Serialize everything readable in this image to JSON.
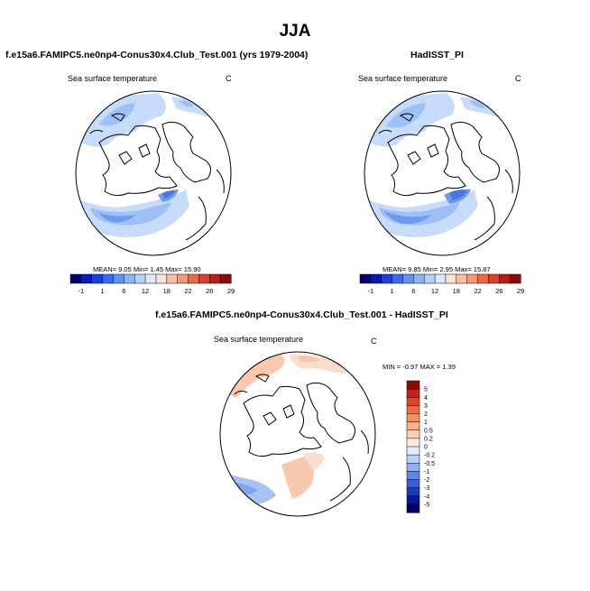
{
  "title": "JJA",
  "panels": {
    "model": {
      "case_title": "f.e15a6.FAMIPC5.ne0np4-Conus30x4.Club_Test.001 (yrs 1979-2004)",
      "variable": "Sea surface temperature",
      "units": "C",
      "stats": {
        "mean_label": "MEAN=",
        "mean": "9.05",
        "min_label": "Min=",
        "min": "1.45",
        "max_label": "Max=",
        "max": "15.90"
      }
    },
    "obs": {
      "case_title": "HadISST_PI",
      "variable": "Sea surface temperature",
      "units": "C",
      "stats": {
        "mean_label": "MEAN=",
        "mean": "9.85",
        "min_label": "Min=",
        "min": "2.95",
        "max_label": "Max=",
        "max": "15.87"
      }
    },
    "diff": {
      "case_title": "f.e15a6.FAMIPC5.ne0np4-Conus30x4.Club_Test.001 - HadISST_PI",
      "variable": "Sea surface temperature",
      "units": "C",
      "minmax_text": "MIN = -0.97 MAX = 1.39"
    }
  },
  "colorbars": {
    "sst": {
      "labels": [
        "-1",
        "1",
        "6",
        "12",
        "18",
        "22",
        "26",
        "29"
      ],
      "colors": [
        "#05006b",
        "#0b18b8",
        "#1f3ee0",
        "#3a6af0",
        "#5f94f5",
        "#8ab6f8",
        "#b5d2fb",
        "#dce9fd",
        "#fbe2d6",
        "#f8c0a4",
        "#f39a76",
        "#ea6b46",
        "#d7402a",
        "#b51f15",
        "#8c0a0a"
      ]
    },
    "diff": {
      "labels": [
        "5",
        "4",
        "3",
        "2",
        "1",
        "0.5",
        "0.2",
        "0",
        "-0.2",
        "-0.5",
        "-1",
        "-2",
        "-3",
        "-4",
        "-5"
      ],
      "colors": [
        "#8c0a0a",
        "#c42216",
        "#e0452c",
        "#ef6a44",
        "#f7925f",
        "#fbb08a",
        "#fdcdb5",
        "#fde9dd",
        "#e3ecfb",
        "#bcd2f7",
        "#8fb1f1",
        "#5f86e8",
        "#3a5fd9",
        "#1d39bf",
        "#0b1699",
        "#05006b"
      ]
    }
  },
  "maps": {
    "land_color": "#ffffff",
    "coast_color": "#000000",
    "sst_fill_light": "#c6dcfa",
    "sst_fill_mid": "#9dc0f6",
    "sst_fill_deep": "#6f9bee",
    "sst_fill_dark": "#4a78e3",
    "diff_warm": "#f9c8b0",
    "diff_warm_light": "#fbddcd",
    "diff_cool": "#a7c3f4",
    "diff_cool_dark": "#7fa5ee"
  }
}
